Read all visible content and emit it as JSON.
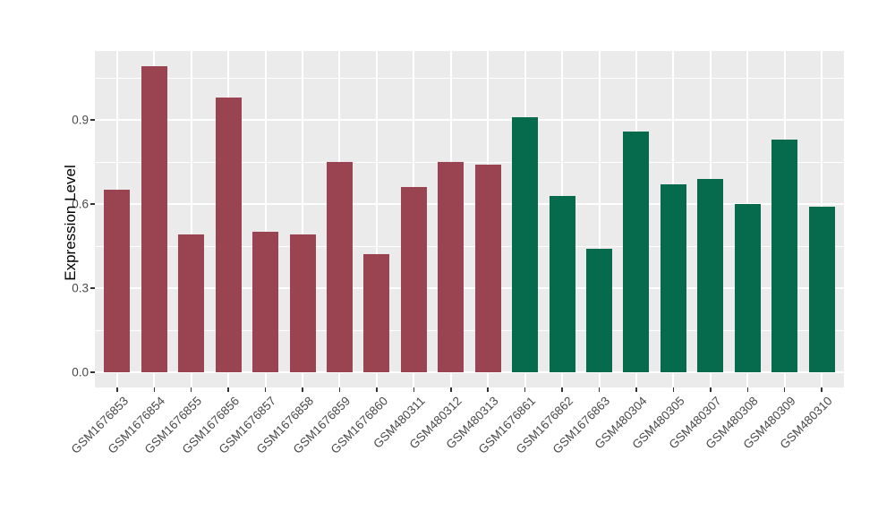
{
  "chart_data": {
    "type": "bar",
    "title": "",
    "xlabel": "",
    "ylabel": "Expression Level",
    "categories": [
      "GSM1676853",
      "GSM1676854",
      "GSM1676855",
      "GSM1676856",
      "GSM1676857",
      "GSM1676858",
      "GSM1676859",
      "GSM1676860",
      "GSM480311",
      "GSM480312",
      "GSM480313",
      "GSM1676861",
      "GSM1676862",
      "GSM1676863",
      "GSM480304",
      "GSM480305",
      "GSM480307",
      "GSM480308",
      "GSM480309",
      "GSM480310"
    ],
    "values": [
      0.65,
      1.09,
      0.49,
      0.98,
      0.5,
      0.49,
      0.75,
      0.42,
      0.66,
      0.75,
      0.74,
      0.91,
      0.63,
      0.44,
      0.86,
      0.67,
      0.69,
      0.6,
      0.83,
      0.59
    ],
    "colors": [
      "#9A4351",
      "#9A4351",
      "#9A4351",
      "#9A4351",
      "#9A4351",
      "#9A4351",
      "#9A4351",
      "#9A4351",
      "#9A4351",
      "#9A4351",
      "#9A4351",
      "#066B4C",
      "#066B4C",
      "#066B4C",
      "#066B4C",
      "#066B4C",
      "#066B4C",
      "#066B4C",
      "#066B4C",
      "#066B4C"
    ],
    "palette": {
      "maroon": "#9A4351",
      "green": "#066B4C"
    },
    "yticks": {
      "labels": [
        "0.0",
        "0.3",
        "0.6",
        "0.9"
      ],
      "values": [
        0,
        0.3,
        0.6,
        0.9
      ]
    },
    "minor_yticks": [
      0.15,
      0.45,
      0.75,
      1.05
    ],
    "ylim": [
      -0.055,
      1.155
    ],
    "x_label_angle": 45,
    "grid": true,
    "legend_position": "none",
    "style": {
      "panel_background": "#EBEBEB",
      "gridline_color": "#FFFFFF",
      "tick_color": "#333333",
      "tick_text_color": "#4A4A4A",
      "axis_title_color": "#000000"
    }
  }
}
